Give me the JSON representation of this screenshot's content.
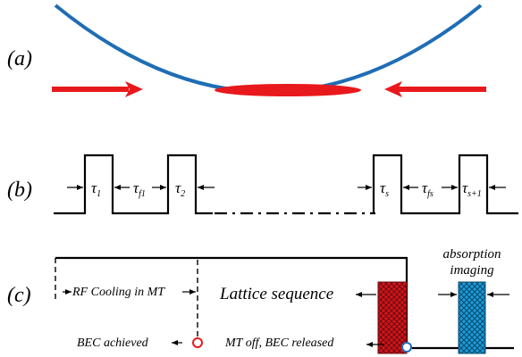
{
  "panels": {
    "a": {
      "label": "(a)"
    },
    "b": {
      "label": "(b)",
      "intervals": [
        {
          "symbol": "τ",
          "sub": "1"
        },
        {
          "symbol": "τ",
          "sub": "f1"
        },
        {
          "symbol": "τ",
          "sub": "2"
        },
        {
          "symbol": "τ",
          "sub": "s"
        },
        {
          "symbol": "τ",
          "sub": "fs"
        },
        {
          "symbol": "τ",
          "sub": "s+1"
        }
      ]
    },
    "c": {
      "label": "(c)",
      "rf_cooling": "RF Cooling in MT",
      "bec_achieved": "BEC achieved",
      "lattice_sequence": "Lattice sequence",
      "mt_off": "MT off, BEC released",
      "absorption_line1": "absorption",
      "absorption_line2": "imaging"
    }
  },
  "colors": {
    "trap_blue": "#1f6db5",
    "laser_red": "#e8191c",
    "lattice_hatch": "#d4151b",
    "imaging_hatch": "#1a9bd7",
    "marker_red": "#e8191c",
    "marker_blue": "#1f6db5"
  }
}
